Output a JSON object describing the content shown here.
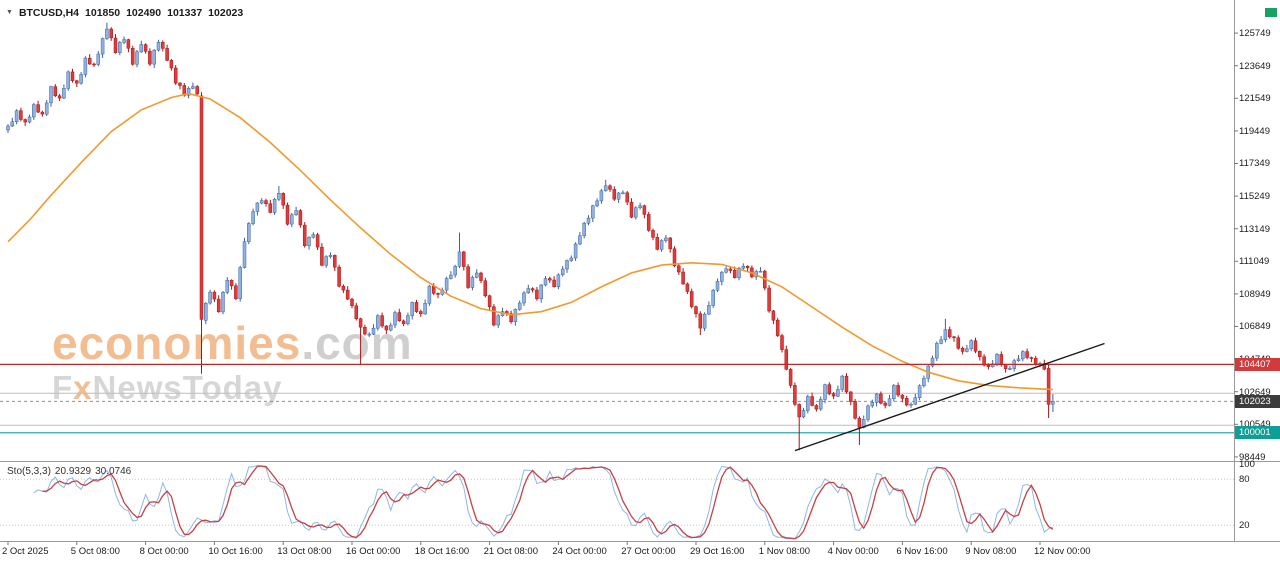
{
  "header": {
    "symbol_period": "BTCUSD,H4",
    "open": "101850",
    "high": "102490",
    "low": "101337",
    "close": "102023"
  },
  "watermark": {
    "brand": "economies",
    "brand_suffix": ".com",
    "sub_f": "F",
    "sub_x": "x",
    "sub_rest": "NewsToday"
  },
  "colors": {
    "background": "#ffffff",
    "up_fill": "#8fb2e0",
    "up_border": "#3d639e",
    "down_fill": "#e03a3a",
    "down_border": "#a81414",
    "axis_text": "#1b1b1b",
    "separator": "#9a9a9a",
    "accent_green": "#17a263"
  },
  "chart_data": {
    "type": "candlestick",
    "symbol": "BTCUSD",
    "timeframe": "H4",
    "current_bar": {
      "open": 101850,
      "high": 102490,
      "low": 101337,
      "close": 102023
    },
    "y_axis": {
      "top_price": 127880,
      "bottom_price": 98182,
      "ticks": [
        125749,
        123649,
        121549,
        119449,
        117349,
        115249,
        113149,
        111049,
        108949,
        106849,
        104749,
        102649,
        100549,
        98449
      ]
    },
    "x_axis": {
      "labels": [
        {
          "index": 0,
          "text": "2 Oct 2025"
        },
        {
          "index": 16,
          "text": "5 Oct 08:00"
        },
        {
          "index": 32,
          "text": "8 Oct 00:00"
        },
        {
          "index": 48,
          "text": "10 Oct 16:00"
        },
        {
          "index": 64,
          "text": "13 Oct 08:00"
        },
        {
          "index": 80,
          "text": "16 Oct 00:00"
        },
        {
          "index": 96,
          "text": "18 Oct 16:00"
        },
        {
          "index": 112,
          "text": "21 Oct 08:00"
        },
        {
          "index": 128,
          "text": "24 Oct 00:00"
        },
        {
          "index": 144,
          "text": "27 Oct 00:00"
        },
        {
          "index": 160,
          "text": "29 Oct 16:00"
        },
        {
          "index": 176,
          "text": "1 Nov 08:00"
        },
        {
          "index": 192,
          "text": "4 Nov 00:00"
        },
        {
          "index": 208,
          "text": "6 Nov 16:00"
        },
        {
          "index": 224,
          "text": "9 Nov 08:00"
        },
        {
          "index": 240,
          "text": "12 Nov 00:00"
        }
      ]
    },
    "candles": {
      "count": 244,
      "anchors": [
        [
          0,
          119700
        ],
        [
          2,
          120600
        ],
        [
          4,
          119900
        ],
        [
          6,
          121100
        ],
        [
          8,
          120400
        ],
        [
          10,
          122200
        ],
        [
          12,
          121500
        ],
        [
          14,
          123100
        ],
        [
          16,
          122400
        ],
        [
          18,
          124100
        ],
        [
          20,
          123600
        ],
        [
          23,
          126150
        ],
        [
          25,
          124600
        ],
        [
          27,
          125400
        ],
        [
          29,
          123900
        ],
        [
          31,
          125100
        ],
        [
          33,
          123800
        ],
        [
          35,
          125300
        ],
        [
          37,
          124100
        ],
        [
          39,
          122600
        ],
        [
          41,
          121900
        ],
        [
          43,
          122400
        ],
        [
          44,
          121700
        ],
        [
          45,
          107300
        ],
        [
          47,
          109200
        ],
        [
          49,
          107900
        ],
        [
          51,
          109900
        ],
        [
          53,
          108800
        ],
        [
          55,
          112400
        ],
        [
          57,
          114300
        ],
        [
          59,
          115100
        ],
        [
          61,
          114300
        ],
        [
          63,
          115500
        ],
        [
          65,
          113600
        ],
        [
          67,
          114400
        ],
        [
          69,
          112100
        ],
        [
          71,
          112900
        ],
        [
          73,
          110900
        ],
        [
          75,
          111500
        ],
        [
          77,
          109600
        ],
        [
          79,
          108700
        ],
        [
          81,
          107400
        ],
        [
          82,
          106700
        ],
        [
          84,
          106300
        ],
        [
          86,
          107400
        ],
        [
          88,
          106500
        ],
        [
          90,
          107700
        ],
        [
          92,
          106900
        ],
        [
          94,
          108300
        ],
        [
          96,
          107600
        ],
        [
          98,
          109300
        ],
        [
          100,
          108800
        ],
        [
          102,
          109900
        ],
        [
          104,
          110600
        ],
        [
          105,
          111700
        ],
        [
          107,
          109500
        ],
        [
          109,
          110400
        ],
        [
          111,
          108900
        ],
        [
          113,
          107100
        ],
        [
          115,
          107900
        ],
        [
          117,
          107200
        ],
        [
          119,
          108500
        ],
        [
          121,
          109400
        ],
        [
          123,
          108700
        ],
        [
          125,
          110100
        ],
        [
          127,
          109500
        ],
        [
          129,
          110600
        ],
        [
          131,
          111400
        ],
        [
          133,
          112800
        ],
        [
          135,
          113900
        ],
        [
          137,
          115100
        ],
        [
          139,
          116000
        ],
        [
          141,
          115100
        ],
        [
          143,
          115600
        ],
        [
          145,
          114000
        ],
        [
          147,
          114700
        ],
        [
          149,
          113200
        ],
        [
          151,
          111900
        ],
        [
          153,
          112600
        ],
        [
          155,
          110900
        ],
        [
          157,
          109700
        ],
        [
          159,
          108200
        ],
        [
          161,
          106900
        ],
        [
          163,
          108300
        ],
        [
          165,
          109800
        ],
        [
          167,
          110700
        ],
        [
          169,
          110100
        ],
        [
          171,
          110800
        ],
        [
          173,
          110200
        ],
        [
          175,
          110500
        ],
        [
          177,
          107900
        ],
        [
          179,
          106400
        ],
        [
          181,
          104200
        ],
        [
          182,
          102900
        ],
        [
          184,
          100900
        ],
        [
          186,
          102300
        ],
        [
          188,
          101400
        ],
        [
          190,
          103000
        ],
        [
          192,
          102300
        ],
        [
          194,
          103500
        ],
        [
          196,
          101900
        ],
        [
          198,
          100300
        ],
        [
          200,
          101600
        ],
        [
          202,
          102400
        ],
        [
          204,
          101700
        ],
        [
          206,
          102900
        ],
        [
          208,
          102100
        ],
        [
          210,
          101800
        ],
        [
          212,
          102900
        ],
        [
          214,
          104200
        ],
        [
          216,
          105700
        ],
        [
          218,
          106500
        ],
        [
          220,
          106000
        ],
        [
          222,
          105200
        ],
        [
          224,
          105800
        ],
        [
          226,
          104800
        ],
        [
          228,
          104200
        ],
        [
          230,
          104900
        ],
        [
          232,
          104000
        ],
        [
          234,
          104600
        ],
        [
          236,
          105100
        ],
        [
          238,
          104700
        ],
        [
          240,
          104400
        ],
        [
          241,
          104200
        ],
        [
          242,
          101830
        ],
        [
          243,
          102023
        ]
      ],
      "wiggle": [
        60,
        -110,
        150,
        -70,
        120,
        -160,
        40,
        -90,
        130,
        -50,
        100,
        -140
      ],
      "wick_pattern": [
        120,
        250,
        90,
        190,
        60,
        160
      ],
      "wicks_low": [
        [
          45,
          103800
        ],
        [
          82,
          104430
        ],
        [
          161,
          106300
        ],
        [
          184,
          98870
        ],
        [
          198,
          99210
        ]
      ],
      "wicks_high": [
        [
          23,
          126420
        ],
        [
          63,
          115900
        ],
        [
          105,
          112900
        ],
        [
          139,
          116300
        ],
        [
          218,
          107350
        ]
      ],
      "explicit": {
        "45": [
          121700,
          121950,
          103800,
          107300
        ],
        "242": [
          104150,
          104400,
          100950,
          101830
        ],
        "243": [
          101850,
          102490,
          101337,
          102023
        ]
      }
    },
    "ma": {
      "name": "moving-average",
      "color": "#f2992e",
      "points": [
        [
          0,
          112300
        ],
        [
          5,
          113700
        ],
        [
          10,
          115300
        ],
        [
          17,
          117400
        ],
        [
          24,
          119400
        ],
        [
          31,
          120800
        ],
        [
          38,
          121600
        ],
        [
          42,
          121850
        ],
        [
          47,
          121500
        ],
        [
          54,
          120300
        ],
        [
          61,
          118700
        ],
        [
          68,
          116900
        ],
        [
          75,
          115000
        ],
        [
          82,
          113200
        ],
        [
          89,
          111500
        ],
        [
          96,
          110000
        ],
        [
          103,
          108800
        ],
        [
          110,
          108000
        ],
        [
          117,
          107600
        ],
        [
          124,
          107800
        ],
        [
          131,
          108400
        ],
        [
          138,
          109400
        ],
        [
          145,
          110300
        ],
        [
          152,
          110800
        ],
        [
          159,
          110950
        ],
        [
          166,
          110850
        ],
        [
          173,
          110300
        ],
        [
          180,
          109400
        ],
        [
          187,
          108100
        ],
        [
          194,
          106800
        ],
        [
          201,
          105600
        ],
        [
          208,
          104600
        ],
        [
          214,
          103900
        ],
        [
          221,
          103350
        ],
        [
          228,
          103050
        ],
        [
          235,
          102900
        ],
        [
          243,
          102780
        ]
      ]
    },
    "levels": [
      {
        "price": 104407,
        "color": "#c22626",
        "width": 1.2,
        "over": true,
        "badge": true,
        "label": "104407",
        "badge_bg": "#d23b3b"
      },
      {
        "price": 102550,
        "color": "#bdbdbd",
        "width": 1
      },
      {
        "price": 100480,
        "color": "#bdbdbd",
        "width": 1
      },
      {
        "price": 100001,
        "color": "#12a09a",
        "width": 1.2,
        "badge": true,
        "label": "100001",
        "badge_bg": "#0d9e96"
      },
      {
        "price": 102023,
        "color": "#909090",
        "width": 1,
        "dash": "3,3",
        "badge": true,
        "label": "102023",
        "badge_bg": "#3c3c3c"
      }
    ],
    "trendline": {
      "i1": 183,
      "p1": 98850,
      "i2": 255,
      "p2": 105750,
      "color": "#1a1a1a"
    },
    "stochastic": {
      "label": "Sto(5,3,3)",
      "value_main": "20.9329",
      "value_signal": "30.0746",
      "k_period": 5,
      "d_period": 3,
      "slowing": 3,
      "main_color": "#8cb8e8",
      "signal_color": "#c94040",
      "levels_drawn": [
        80,
        20
      ],
      "scale_labels": [
        {
          "value": 100,
          "text": "100"
        },
        {
          "value": 80,
          "text": "80"
        },
        {
          "value": 20,
          "text": "20"
        }
      ]
    }
  }
}
